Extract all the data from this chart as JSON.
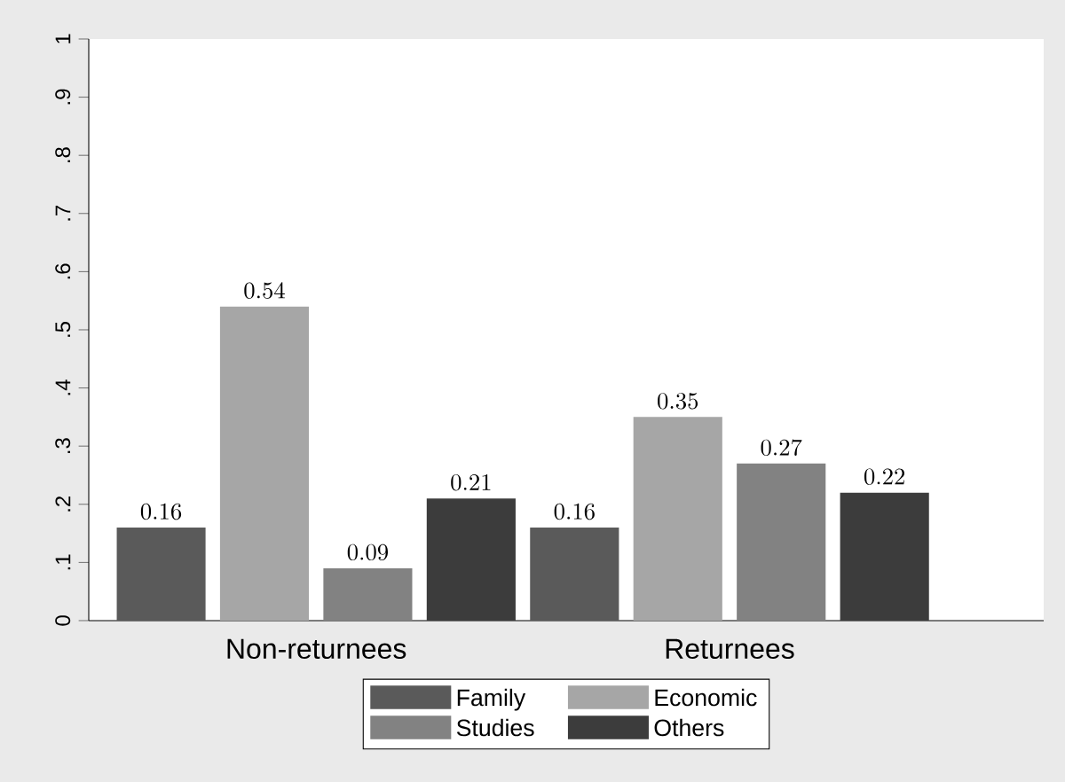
{
  "chart_data": {
    "type": "bar",
    "categories": [
      "Non-returnees",
      "Returnees"
    ],
    "series": [
      {
        "name": "Family",
        "color": "#5a5a5a",
        "values": [
          0.16,
          0.16
        ]
      },
      {
        "name": "Economic",
        "color": "#a6a6a6",
        "values": [
          0.54,
          0.35
        ]
      },
      {
        "name": "Studies",
        "color": "#828282",
        "values": [
          0.09,
          0.27
        ]
      },
      {
        "name": "Others",
        "color": "#3c3c3c",
        "values": [
          0.21,
          0.22
        ]
      }
    ],
    "ylim": [
      0,
      1
    ],
    "yticks": [
      0,
      {
        "value": 0.1,
        "label": ".1"
      },
      {
        "value": 0.2,
        "label": ".2"
      },
      {
        "value": 0.3,
        "label": ".3"
      },
      {
        "value": 0.4,
        "label": ".4"
      },
      {
        "value": 0.5,
        "label": ".5"
      },
      {
        "value": 0.6,
        "label": ".6"
      },
      {
        "value": 0.7,
        "label": ".7"
      },
      {
        "value": 0.8,
        "label": ".8"
      },
      {
        "value": 0.9,
        "label": ".9"
      },
      1
    ],
    "data_labels": true,
    "legend": "bottom"
  }
}
